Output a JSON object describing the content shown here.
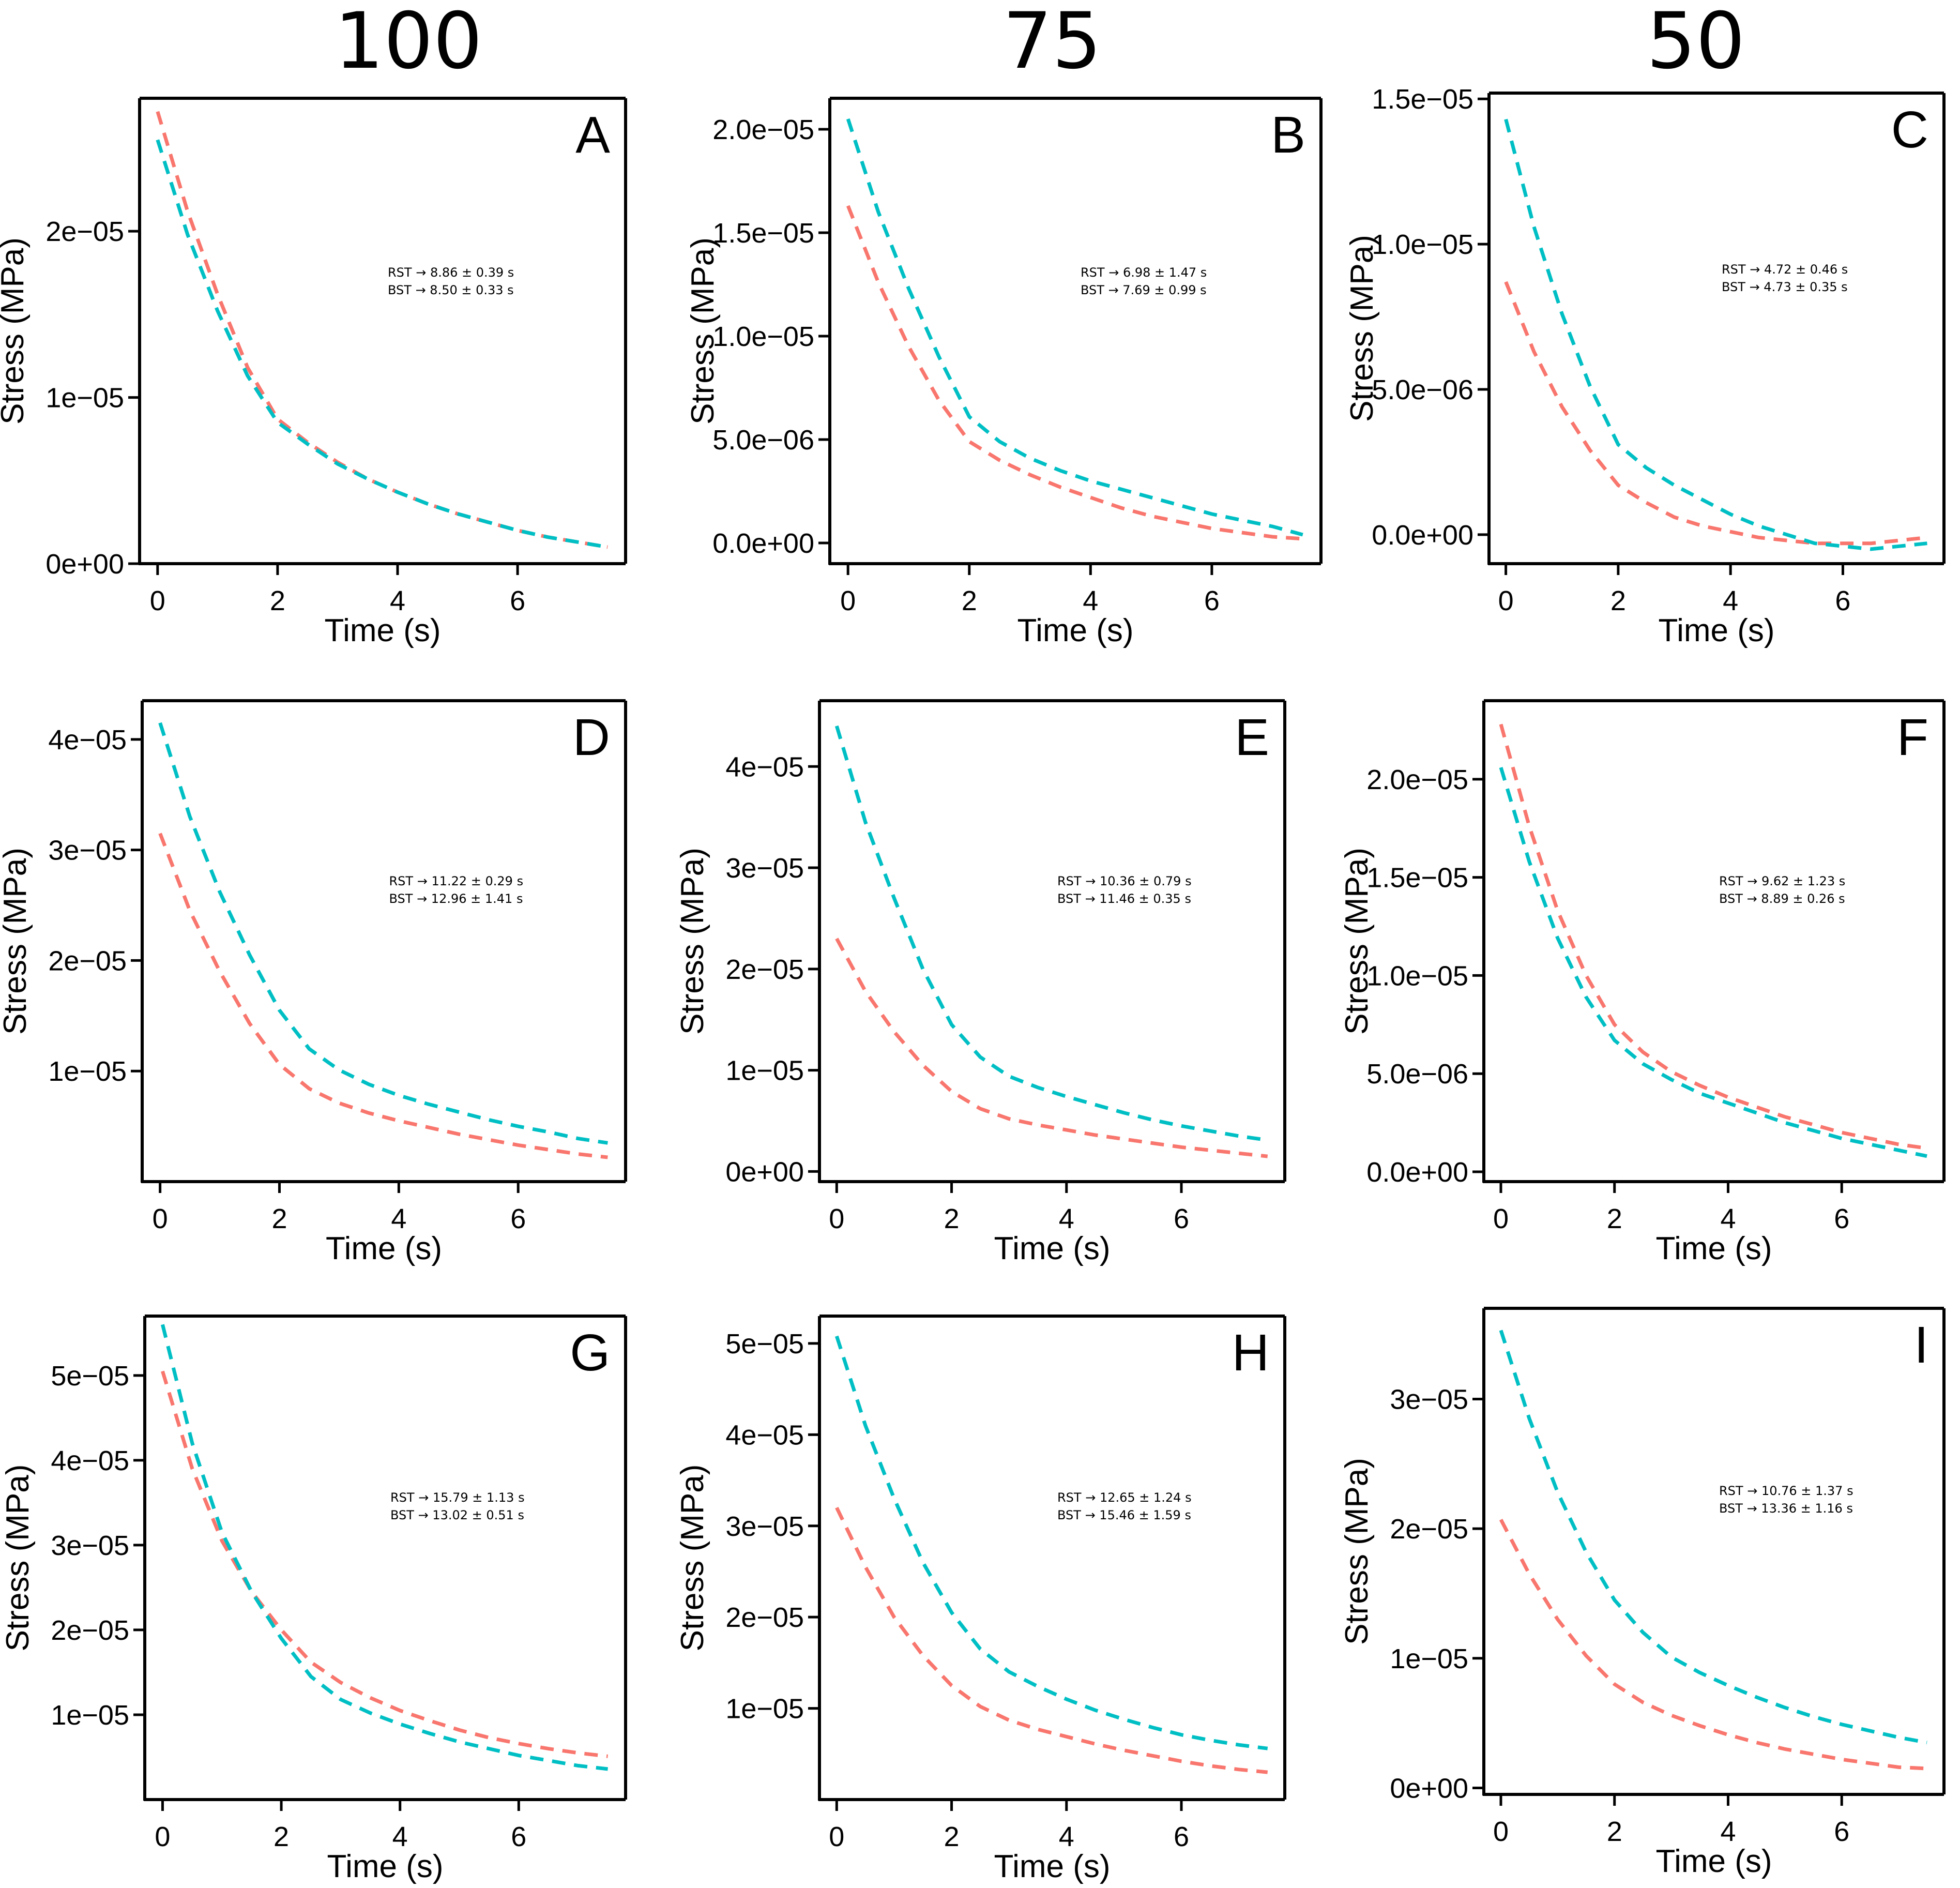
{
  "column_headers": [
    "100",
    "75",
    "50"
  ],
  "colors": {
    "RST": "#F8766D",
    "BST": "#00BFC4",
    "axis": "#000000"
  },
  "chart_data": [
    {
      "panel": "A",
      "type": "line",
      "title": "",
      "xlabel": "Time (s)",
      "ylabel": "Stress (MPa)",
      "xlim": [
        -0.3,
        7.8
      ],
      "ylim": [
        0,
        2.8e-05
      ],
      "xticks": [
        0,
        2,
        4,
        6
      ],
      "xtick_labels": [
        "0",
        "2",
        "4",
        "6"
      ],
      "yticks": [
        0,
        1e-05,
        2e-05
      ],
      "ytick_labels": [
        "0e+00",
        "1e−05",
        "2e−05"
      ],
      "annotation": [
        "RST →  8.86 ± 0.39 s",
        "BST →  8.50 ± 0.33 s"
      ],
      "x": [
        0,
        0.5,
        1,
        1.5,
        2,
        2.5,
        3,
        3.5,
        4,
        4.5,
        5,
        5.5,
        6,
        6.5,
        7,
        7.5
      ],
      "series": [
        {
          "name": "RST",
          "color": "#F8766D",
          "values": [
            2.72e-05,
            2.12e-05,
            1.62e-05,
            1.18e-05,
            8.7e-06,
            7.3e-06,
            6.1e-06,
            5.1e-06,
            4.3e-06,
            3.6e-06,
            3e-06,
            2.5e-06,
            2e-06,
            1.6e-06,
            1.3e-06,
            1e-06
          ]
        },
        {
          "name": "BST",
          "color": "#00BFC4",
          "values": [
            2.55e-05,
            1.98e-05,
            1.52e-05,
            1.13e-05,
            8.5e-06,
            7.2e-06,
            6e-06,
            5.1e-06,
            4.3e-06,
            3.6e-06,
            3e-06,
            2.5e-06,
            2e-06,
            1.6e-06,
            1.3e-06,
            1e-06
          ]
        }
      ]
    },
    {
      "panel": "B",
      "type": "line",
      "title": "",
      "xlabel": "Time (s)",
      "ylabel": "Stress (MPa)",
      "xlim": [
        -0.3,
        7.8
      ],
      "ylim": [
        -1e-06,
        2.15e-05
      ],
      "xticks": [
        0,
        2,
        4,
        6
      ],
      "xtick_labels": [
        "0",
        "2",
        "4",
        "6"
      ],
      "yticks": [
        0,
        5e-06,
        1e-05,
        1.5e-05,
        2e-05
      ],
      "ytick_labels": [
        "0.0e+00",
        "5.0e−06",
        "1.0e−05",
        "1.5e−05",
        "2.0e−05"
      ],
      "annotation": [
        "RST →  6.98 ± 1.47 s",
        "BST →  7.69 ± 0.99 s"
      ],
      "x": [
        0,
        0.5,
        1,
        1.5,
        2,
        2.5,
        3,
        3.5,
        4,
        4.5,
        5,
        5.5,
        6,
        6.5,
        7,
        7.5
      ],
      "series": [
        {
          "name": "RST",
          "color": "#F8766D",
          "values": [
            1.63e-05,
            1.26e-05,
            9.5e-06,
            6.9e-06,
            4.9e-06,
            4e-06,
            3.3e-06,
            2.7e-06,
            2.2e-06,
            1.7e-06,
            1.3e-06,
            1e-06,
            7e-07,
            5e-07,
            3e-07,
            2e-07
          ]
        },
        {
          "name": "BST",
          "color": "#00BFC4",
          "values": [
            2.05e-05,
            1.6e-05,
            1.23e-05,
            9e-06,
            6.1e-06,
            4.9e-06,
            4.1e-06,
            3.5e-06,
            3e-06,
            2.6e-06,
            2.2e-06,
            1.8e-06,
            1.4e-06,
            1.1e-06,
            8e-07,
            4e-07
          ]
        }
      ]
    },
    {
      "panel": "C",
      "type": "line",
      "title": "",
      "xlabel": "Time (s)",
      "ylabel": "Stress (MPa)",
      "xlim": [
        -0.3,
        7.8
      ],
      "ylim": [
        -1e-06,
        1.52e-05
      ],
      "xticks": [
        0,
        2,
        4,
        6
      ],
      "xtick_labels": [
        "0",
        "2",
        "4",
        "6"
      ],
      "yticks": [
        0,
        5e-06,
        1e-05,
        1.5e-05
      ],
      "ytick_labels": [
        "0.0e+00",
        "5.0e−06",
        "1.0e−05",
        "1.5e−05"
      ],
      "annotation": [
        "RST →  4.72 ± 0.46 s",
        "BST →  4.73 ± 0.35 s"
      ],
      "x": [
        0,
        0.5,
        1,
        1.5,
        2,
        2.5,
        3,
        3.5,
        4,
        4.5,
        5,
        5.5,
        6,
        6.5,
        7,
        7.5
      ],
      "series": [
        {
          "name": "RST",
          "color": "#F8766D",
          "values": [
            8.7e-06,
            6.3e-06,
            4.4e-06,
            2.9e-06,
            1.7e-06,
            1.1e-06,
            6e-07,
            3e-07,
            1e-07,
            -1e-07,
            -2e-07,
            -3e-07,
            -3e-07,
            -3e-07,
            -2e-07,
            -1e-07
          ]
        },
        {
          "name": "BST",
          "color": "#00BFC4",
          "values": [
            1.43e-05,
            1.06e-05,
            7.6e-06,
            5.1e-06,
            3.1e-06,
            2.3e-06,
            1.7e-06,
            1.2e-06,
            7e-07,
            3e-07,
            0,
            -3e-07,
            -4e-07,
            -5e-07,
            -4e-07,
            -3e-07
          ]
        }
      ]
    },
    {
      "panel": "D",
      "type": "line",
      "title": "",
      "xlabel": "Time (s)",
      "ylabel": "Stress (MPa)",
      "xlim": [
        -0.3,
        7.8
      ],
      "ylim": [
        0,
        4.35e-05
      ],
      "xticks": [
        0,
        2,
        4,
        6
      ],
      "xtick_labels": [
        "0",
        "2",
        "4",
        "6"
      ],
      "yticks": [
        1e-05,
        2e-05,
        3e-05,
        4e-05
      ],
      "ytick_labels": [
        "1e−05",
        "2e−05",
        "3e−05",
        "4e−05"
      ],
      "annotation": [
        "RST →  11.22 ± 0.29 s",
        "BST →  12.96 ± 1.41 s"
      ],
      "x": [
        0,
        0.5,
        1,
        1.5,
        2,
        2.5,
        3,
        3.5,
        4,
        4.5,
        5,
        5.5,
        6,
        6.5,
        7,
        7.5
      ],
      "series": [
        {
          "name": "RST",
          "color": "#F8766D",
          "values": [
            3.15e-05,
            2.45e-05,
            1.9e-05,
            1.43e-05,
            1.06e-05,
            8.4e-06,
            7.1e-06,
            6.2e-06,
            5.5e-06,
            4.9e-06,
            4.3e-06,
            3.8e-06,
            3.3e-06,
            2.9e-06,
            2.5e-06,
            2.2e-06
          ]
        },
        {
          "name": "BST",
          "color": "#00BFC4",
          "values": [
            4.15e-05,
            3.3e-05,
            2.62e-05,
            2.05e-05,
            1.55e-05,
            1.2e-05,
            1.01e-05,
            8.8e-06,
            7.8e-06,
            7e-06,
            6.3e-06,
            5.6e-06,
            5e-06,
            4.5e-06,
            3.9e-06,
            3.5e-06
          ]
        }
      ]
    },
    {
      "panel": "E",
      "type": "line",
      "title": "",
      "xlabel": "Time (s)",
      "ylabel": "Stress (MPa)",
      "xlim": [
        -0.3,
        7.8
      ],
      "ylim": [
        -1e-06,
        4.65e-05
      ],
      "xticks": [
        0,
        2,
        4,
        6
      ],
      "xtick_labels": [
        "0",
        "2",
        "4",
        "6"
      ],
      "yticks": [
        0,
        1e-05,
        2e-05,
        3e-05,
        4e-05
      ],
      "ytick_labels": [
        "0e+00",
        "1e−05",
        "2e−05",
        "3e−05",
        "4e−05"
      ],
      "annotation": [
        "RST →  10.36 ± 0.79 s",
        "BST →  11.46 ± 0.35 s"
      ],
      "x": [
        0,
        0.5,
        1,
        1.5,
        2,
        2.5,
        3,
        3.5,
        4,
        4.5,
        5,
        5.5,
        6,
        6.5,
        7,
        7.5
      ],
      "series": [
        {
          "name": "RST",
          "color": "#F8766D",
          "values": [
            2.3e-05,
            1.78e-05,
            1.38e-05,
            1.05e-05,
            7.9e-06,
            6.2e-06,
            5.2e-06,
            4.6e-06,
            4.1e-06,
            3.6e-06,
            3.2e-06,
            2.8e-06,
            2.4e-06,
            2.1e-06,
            1.8e-06,
            1.5e-06
          ]
        },
        {
          "name": "BST",
          "color": "#00BFC4",
          "values": [
            4.4e-05,
            3.45e-05,
            2.7e-05,
            2e-05,
            1.45e-05,
            1.13e-05,
            9.4e-06,
            8.3e-06,
            7.4e-06,
            6.6e-06,
            5.8e-06,
            5.1e-06,
            4.5e-06,
            4e-06,
            3.5e-06,
            3.1e-06
          ]
        }
      ]
    },
    {
      "panel": "F",
      "type": "line",
      "title": "",
      "xlabel": "Time (s)",
      "ylabel": "Stress (MPa)",
      "xlim": [
        -0.3,
        7.8
      ],
      "ylim": [
        -5e-07,
        2.4e-05
      ],
      "xticks": [
        0,
        2,
        4,
        6
      ],
      "xtick_labels": [
        "0",
        "2",
        "4",
        "6"
      ],
      "yticks": [
        0,
        5e-06,
        1e-05,
        1.5e-05,
        2e-05
      ],
      "ytick_labels": [
        "0.0e+00",
        "5.0e−06",
        "1.0e−05",
        "1.5e−05",
        "2.0e−05"
      ],
      "annotation": [
        "RST →  9.62 ± 1.23 s",
        "BST →  8.89 ± 0.26 s"
      ],
      "x": [
        0,
        0.5,
        1,
        1.5,
        2,
        2.5,
        3,
        3.5,
        4,
        4.5,
        5,
        5.5,
        6,
        6.5,
        7,
        7.5
      ],
      "series": [
        {
          "name": "RST",
          "color": "#F8766D",
          "values": [
            2.28e-05,
            1.76e-05,
            1.33e-05,
            1e-05,
            7.5e-06,
            6.1e-06,
            5.1e-06,
            4.4e-06,
            3.8e-06,
            3.3e-06,
            2.8e-06,
            2.4e-06,
            2e-06,
            1.7e-06,
            1.4e-06,
            1.2e-06
          ]
        },
        {
          "name": "BST",
          "color": "#00BFC4",
          "values": [
            2.06e-05,
            1.58e-05,
            1.19e-05,
            8.9e-06,
            6.7e-06,
            5.5e-06,
            4.7e-06,
            4e-06,
            3.5e-06,
            3e-06,
            2.5e-06,
            2.1e-06,
            1.7e-06,
            1.4e-06,
            1.1e-06,
            8e-07
          ]
        }
      ]
    },
    {
      "panel": "G",
      "type": "line",
      "title": "",
      "xlabel": "Time (s)",
      "ylabel": "Stress (MPa)",
      "xlim": [
        -0.3,
        7.8
      ],
      "ylim": [
        0,
        5.7e-05
      ],
      "xticks": [
        0,
        2,
        4,
        6
      ],
      "xtick_labels": [
        "0",
        "2",
        "4",
        "6"
      ],
      "yticks": [
        1e-05,
        2e-05,
        3e-05,
        4e-05,
        5e-05
      ],
      "ytick_labels": [
        "1e−05",
        "2e−05",
        "3e−05",
        "4e−05",
        "5e−05"
      ],
      "annotation": [
        "RST →  15.79 ± 1.13 s",
        "BST →  13.02 ± 0.51 s"
      ],
      "x": [
        0,
        0.5,
        1,
        1.5,
        2,
        2.5,
        3,
        3.5,
        4,
        4.5,
        5,
        5.5,
        6,
        6.5,
        7,
        7.5
      ],
      "series": [
        {
          "name": "RST",
          "color": "#F8766D",
          "values": [
            5.05e-05,
            3.9e-05,
            3.05e-05,
            2.45e-05,
            2e-05,
            1.62e-05,
            1.38e-05,
            1.2e-05,
            1.05e-05,
            9.3e-06,
            8.2e-06,
            7.3e-06,
            6.6e-06,
            6e-06,
            5.5e-06,
            5.1e-06
          ]
        },
        {
          "name": "BST",
          "color": "#00BFC4",
          "values": [
            5.6e-05,
            4.2e-05,
            3.15e-05,
            2.45e-05,
            1.9e-05,
            1.45e-05,
            1.18e-05,
            1.02e-05,
            8.9e-06,
            7.8e-06,
            6.8e-06,
            6e-06,
            5.2e-06,
            4.6e-06,
            4e-06,
            3.6e-06
          ]
        }
      ]
    },
    {
      "panel": "H",
      "type": "line",
      "title": "",
      "xlabel": "Time (s)",
      "ylabel": "Stress (MPa)",
      "xlim": [
        -0.3,
        7.8
      ],
      "ylim": [
        0,
        5.3e-05
      ],
      "xticks": [
        0,
        2,
        4,
        6
      ],
      "xtick_labels": [
        "0",
        "2",
        "4",
        "6"
      ],
      "yticks": [
        1e-05,
        2e-05,
        3e-05,
        4e-05,
        5e-05
      ],
      "ytick_labels": [
        "1e−05",
        "2e−05",
        "3e−05",
        "4e−05",
        "5e−05"
      ],
      "annotation": [
        "RST →  12.65 ± 1.24 s",
        "BST →  15.46 ± 1.59 s"
      ],
      "x": [
        0,
        0.5,
        1,
        1.5,
        2,
        2.5,
        3,
        3.5,
        4,
        4.5,
        5,
        5.5,
        6,
        6.5,
        7,
        7.5
      ],
      "series": [
        {
          "name": "RST",
          "color": "#F8766D",
          "values": [
            3.2e-05,
            2.55e-05,
            2e-05,
            1.58e-05,
            1.25e-05,
            1.02e-05,
            8.7e-06,
            7.7e-06,
            6.9e-06,
            6.1e-06,
            5.4e-06,
            4.8e-06,
            4.2e-06,
            3.7e-06,
            3.3e-06,
            3e-06
          ]
        },
        {
          "name": "BST",
          "color": "#00BFC4",
          "values": [
            5.08e-05,
            4.1e-05,
            3.3e-05,
            2.6e-05,
            2.05e-05,
            1.65e-05,
            1.4e-05,
            1.24e-05,
            1.1e-05,
            9.8e-06,
            8.8e-06,
            7.9e-06,
            7.1e-06,
            6.5e-06,
            6e-06,
            5.6e-06
          ]
        }
      ]
    },
    {
      "panel": "I",
      "type": "line",
      "title": "",
      "xlabel": "Time (s)",
      "ylabel": "Stress (MPa)",
      "xlim": [
        -0.3,
        7.8
      ],
      "ylim": [
        -5e-07,
        3.7e-05
      ],
      "xticks": [
        0,
        2,
        4,
        6
      ],
      "xtick_labels": [
        "0",
        "2",
        "4",
        "6"
      ],
      "yticks": [
        0,
        1e-05,
        2e-05,
        3e-05
      ],
      "ytick_labels": [
        "0e+00",
        "1e−05",
        "2e−05",
        "3e−05"
      ],
      "annotation": [
        "RST →  10.76 ± 1.37 s",
        "BST →  13.36 ± 1.16 s"
      ],
      "x": [
        0,
        0.5,
        1,
        1.5,
        2,
        2.5,
        3,
        3.5,
        4,
        4.5,
        5,
        5.5,
        6,
        6.5,
        7,
        7.5
      ],
      "series": [
        {
          "name": "RST",
          "color": "#F8766D",
          "values": [
            2.07e-05,
            1.65e-05,
            1.3e-05,
            1.02e-05,
            8e-06,
            6.6e-06,
            5.6e-06,
            4.8e-06,
            4.1e-06,
            3.5e-06,
            3e-06,
            2.6e-06,
            2.2e-06,
            1.9e-06,
            1.6e-06,
            1.5e-06
          ]
        },
        {
          "name": "BST",
          "color": "#00BFC4",
          "values": [
            3.53e-05,
            2.85e-05,
            2.28e-05,
            1.82e-05,
            1.45e-05,
            1.2e-05,
            1.01e-05,
            8.9e-06,
            7.9e-06,
            7e-06,
            6.2e-06,
            5.5e-06,
            4.9e-06,
            4.4e-06,
            3.9e-06,
            3.5e-06
          ]
        }
      ]
    }
  ]
}
